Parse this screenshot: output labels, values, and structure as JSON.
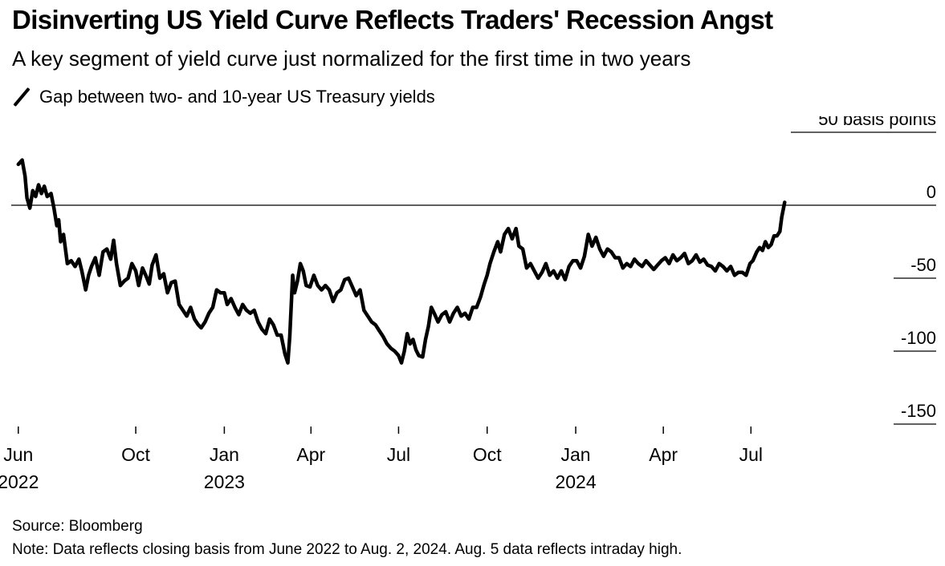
{
  "header": {
    "title": "Disinverting US Yield Curve Reflects Traders' Recession Angst",
    "subtitle": "A key segment of yield curve just normalized for the first time in two years",
    "legend_label": "Gap between two- and 10-year US Treasury yields"
  },
  "footer": {
    "source": "Source: Bloomberg",
    "note": "Note: Data reflects closing basis from June 2022 to Aug. 2, 2024. Aug. 5 data reflects intraday high."
  },
  "chart_data": {
    "type": "line",
    "title": "Disinverting US Yield Curve Reflects Traders' Recession Angst",
    "subtitle": "A key segment of yield curve just normalized for the first time in two years",
    "xlabel": "",
    "ylabel": "",
    "ylim": [
      -150,
      50
    ],
    "y_unit_label": "basis points",
    "y_ticks": [
      {
        "value": 50,
        "label": "50 basis points"
      },
      {
        "value": 0,
        "label": "0"
      },
      {
        "value": -50,
        "label": "-50"
      },
      {
        "value": -100,
        "label": "-100"
      },
      {
        "value": -150,
        "label": "-150"
      }
    ],
    "x_ticks": [
      {
        "date": "2022-06-01",
        "label": "Jun",
        "year": "2022"
      },
      {
        "date": "2022-10-01",
        "label": "Oct",
        "year": ""
      },
      {
        "date": "2023-01-01",
        "label": "Jan",
        "year": "2023"
      },
      {
        "date": "2023-04-01",
        "label": "Apr",
        "year": ""
      },
      {
        "date": "2023-07-01",
        "label": "Jul",
        "year": ""
      },
      {
        "date": "2023-10-01",
        "label": "Oct",
        "year": ""
      },
      {
        "date": "2024-01-01",
        "label": "Jan",
        "year": "2024"
      },
      {
        "date": "2024-04-01",
        "label": "Apr",
        "year": ""
      },
      {
        "date": "2024-07-01",
        "label": "Jul",
        "year": ""
      }
    ],
    "xlim": [
      "2022-05-18",
      "2024-10-18"
    ],
    "zero_line": true,
    "series": [
      {
        "name": "Gap between two- and 10-year US Treasury yields",
        "color": "#000000",
        "points": [
          [
            "2022-06-01",
            28
          ],
          [
            "2022-06-05",
            31
          ],
          [
            "2022-06-08",
            20
          ],
          [
            "2022-06-10",
            5
          ],
          [
            "2022-06-13",
            -2
          ],
          [
            "2022-06-16",
            10
          ],
          [
            "2022-06-19",
            6
          ],
          [
            "2022-06-22",
            14
          ],
          [
            "2022-06-25",
            8
          ],
          [
            "2022-06-28",
            13
          ],
          [
            "2022-07-01",
            6
          ],
          [
            "2022-07-05",
            8
          ],
          [
            "2022-07-08",
            -2
          ],
          [
            "2022-07-11",
            -14
          ],
          [
            "2022-07-13",
            -10
          ],
          [
            "2022-07-15",
            -25
          ],
          [
            "2022-07-18",
            -20
          ],
          [
            "2022-07-22",
            -40
          ],
          [
            "2022-07-26",
            -38
          ],
          [
            "2022-07-30",
            -42
          ],
          [
            "2022-08-03",
            -37
          ],
          [
            "2022-08-06",
            -45
          ],
          [
            "2022-08-10",
            -58
          ],
          [
            "2022-08-13",
            -48
          ],
          [
            "2022-08-16",
            -42
          ],
          [
            "2022-08-20",
            -36
          ],
          [
            "2022-08-24",
            -48
          ],
          [
            "2022-08-28",
            -32
          ],
          [
            "2022-09-01",
            -30
          ],
          [
            "2022-09-05",
            -37
          ],
          [
            "2022-09-08",
            -24
          ],
          [
            "2022-09-11",
            -40
          ],
          [
            "2022-09-15",
            -55
          ],
          [
            "2022-09-19",
            -52
          ],
          [
            "2022-09-23",
            -50
          ],
          [
            "2022-09-27",
            -40
          ],
          [
            "2022-10-01",
            -45
          ],
          [
            "2022-10-04",
            -55
          ],
          [
            "2022-10-08",
            -43
          ],
          [
            "2022-10-12",
            -49
          ],
          [
            "2022-10-15",
            -54
          ],
          [
            "2022-10-18",
            -41
          ],
          [
            "2022-10-22",
            -34
          ],
          [
            "2022-10-26",
            -50
          ],
          [
            "2022-10-30",
            -47
          ],
          [
            "2022-11-03",
            -60
          ],
          [
            "2022-11-07",
            -53
          ],
          [
            "2022-11-11",
            -52
          ],
          [
            "2022-11-15",
            -68
          ],
          [
            "2022-11-19",
            -72
          ],
          [
            "2022-11-23",
            -76
          ],
          [
            "2022-11-27",
            -70
          ],
          [
            "2022-12-01",
            -78
          ],
          [
            "2022-12-05",
            -82
          ],
          [
            "2022-12-08",
            -84
          ],
          [
            "2022-12-12",
            -80
          ],
          [
            "2022-12-16",
            -74
          ],
          [
            "2022-12-20",
            -70
          ],
          [
            "2022-12-24",
            -58
          ],
          [
            "2022-12-28",
            -60
          ],
          [
            "2023-01-01",
            -60
          ],
          [
            "2023-01-04",
            -68
          ],
          [
            "2023-01-08",
            -64
          ],
          [
            "2023-01-12",
            -70
          ],
          [
            "2023-01-16",
            -75
          ],
          [
            "2023-01-20",
            -68
          ],
          [
            "2023-01-24",
            -72
          ],
          [
            "2023-01-28",
            -74
          ],
          [
            "2023-02-01",
            -72
          ],
          [
            "2023-02-05",
            -80
          ],
          [
            "2023-02-09",
            -85
          ],
          [
            "2023-02-13",
            -88
          ],
          [
            "2023-02-17",
            -78
          ],
          [
            "2023-02-21",
            -82
          ],
          [
            "2023-02-25",
            -89
          ],
          [
            "2023-03-01",
            -89
          ],
          [
            "2023-03-05",
            -102
          ],
          [
            "2023-03-08",
            -108
          ],
          [
            "2023-03-10",
            -90
          ],
          [
            "2023-03-13",
            -48
          ],
          [
            "2023-03-15",
            -60
          ],
          [
            "2023-03-18",
            -52
          ],
          [
            "2023-03-21",
            -40
          ],
          [
            "2023-03-24",
            -45
          ],
          [
            "2023-03-27",
            -55
          ],
          [
            "2023-03-31",
            -56
          ],
          [
            "2023-04-04",
            -48
          ],
          [
            "2023-04-08",
            -55
          ],
          [
            "2023-04-12",
            -58
          ],
          [
            "2023-04-16",
            -55
          ],
          [
            "2023-04-20",
            -58
          ],
          [
            "2023-04-24",
            -66
          ],
          [
            "2023-04-28",
            -60
          ],
          [
            "2023-05-02",
            -58
          ],
          [
            "2023-05-06",
            -51
          ],
          [
            "2023-05-10",
            -50
          ],
          [
            "2023-05-14",
            -56
          ],
          [
            "2023-05-18",
            -62
          ],
          [
            "2023-05-22",
            -58
          ],
          [
            "2023-05-26",
            -72
          ],
          [
            "2023-05-30",
            -76
          ],
          [
            "2023-06-03",
            -80
          ],
          [
            "2023-06-07",
            -82
          ],
          [
            "2023-06-11",
            -86
          ],
          [
            "2023-06-15",
            -90
          ],
          [
            "2023-06-19",
            -95
          ],
          [
            "2023-06-23",
            -98
          ],
          [
            "2023-06-27",
            -100
          ],
          [
            "2023-07-01",
            -103
          ],
          [
            "2023-07-04",
            -108
          ],
          [
            "2023-07-07",
            -100
          ],
          [
            "2023-07-10",
            -88
          ],
          [
            "2023-07-13",
            -95
          ],
          [
            "2023-07-16",
            -92
          ],
          [
            "2023-07-19",
            -99
          ],
          [
            "2023-07-22",
            -103
          ],
          [
            "2023-07-26",
            -104
          ],
          [
            "2023-07-29",
            -92
          ],
          [
            "2023-08-01",
            -83
          ],
          [
            "2023-08-04",
            -70
          ],
          [
            "2023-08-07",
            -74
          ],
          [
            "2023-08-11",
            -80
          ],
          [
            "2023-08-15",
            -75
          ],
          [
            "2023-08-19",
            -73
          ],
          [
            "2023-08-23",
            -80
          ],
          [
            "2023-08-27",
            -74
          ],
          [
            "2023-08-31",
            -70
          ],
          [
            "2023-09-04",
            -76
          ],
          [
            "2023-09-08",
            -74
          ],
          [
            "2023-09-12",
            -78
          ],
          [
            "2023-09-16",
            -70
          ],
          [
            "2023-09-20",
            -70
          ],
          [
            "2023-09-24",
            -63
          ],
          [
            "2023-09-28",
            -54
          ],
          [
            "2023-10-01",
            -48
          ],
          [
            "2023-10-04",
            -40
          ],
          [
            "2023-10-08",
            -32
          ],
          [
            "2023-10-12",
            -25
          ],
          [
            "2023-10-15",
            -32
          ],
          [
            "2023-10-19",
            -20
          ],
          [
            "2023-10-23",
            -16
          ],
          [
            "2023-10-27",
            -23
          ],
          [
            "2023-10-31",
            -16
          ],
          [
            "2023-11-03",
            -28
          ],
          [
            "2023-11-07",
            -30
          ],
          [
            "2023-11-11",
            -43
          ],
          [
            "2023-11-15",
            -40
          ],
          [
            "2023-11-19",
            -45
          ],
          [
            "2023-11-23",
            -50
          ],
          [
            "2023-11-27",
            -46
          ],
          [
            "2023-12-01",
            -40
          ],
          [
            "2023-12-05",
            -48
          ],
          [
            "2023-12-09",
            -45
          ],
          [
            "2023-12-13",
            -50
          ],
          [
            "2023-12-17",
            -45
          ],
          [
            "2023-12-21",
            -51
          ],
          [
            "2023-12-25",
            -42
          ],
          [
            "2023-12-29",
            -38
          ],
          [
            "2024-01-02",
            -38
          ],
          [
            "2024-01-06",
            -43
          ],
          [
            "2024-01-10",
            -35
          ],
          [
            "2024-01-14",
            -20
          ],
          [
            "2024-01-18",
            -28
          ],
          [
            "2024-01-22",
            -22
          ],
          [
            "2024-01-26",
            -30
          ],
          [
            "2024-01-30",
            -35
          ],
          [
            "2024-02-03",
            -30
          ],
          [
            "2024-02-07",
            -32
          ],
          [
            "2024-02-11",
            -36
          ],
          [
            "2024-02-15",
            -36
          ],
          [
            "2024-02-19",
            -43
          ],
          [
            "2024-02-23",
            -40
          ],
          [
            "2024-02-27",
            -42
          ],
          [
            "2024-03-02",
            -37
          ],
          [
            "2024-03-06",
            -40
          ],
          [
            "2024-03-10",
            -42
          ],
          [
            "2024-03-14",
            -38
          ],
          [
            "2024-03-18",
            -41
          ],
          [
            "2024-03-22",
            -44
          ],
          [
            "2024-03-26",
            -41
          ],
          [
            "2024-03-30",
            -38
          ],
          [
            "2024-04-03",
            -36
          ],
          [
            "2024-04-07",
            -40
          ],
          [
            "2024-04-11",
            -34
          ],
          [
            "2024-04-15",
            -38
          ],
          [
            "2024-04-19",
            -36
          ],
          [
            "2024-04-23",
            -33
          ],
          [
            "2024-04-27",
            -40
          ],
          [
            "2024-05-01",
            -38
          ],
          [
            "2024-05-05",
            -34
          ],
          [
            "2024-05-09",
            -39
          ],
          [
            "2024-05-13",
            -37
          ],
          [
            "2024-05-17",
            -41
          ],
          [
            "2024-05-21",
            -42
          ],
          [
            "2024-05-25",
            -45
          ],
          [
            "2024-05-29",
            -40
          ],
          [
            "2024-06-02",
            -42
          ],
          [
            "2024-06-06",
            -45
          ],
          [
            "2024-06-10",
            -42
          ],
          [
            "2024-06-14",
            -48
          ],
          [
            "2024-06-18",
            -46
          ],
          [
            "2024-06-22",
            -46
          ],
          [
            "2024-06-26",
            -48
          ],
          [
            "2024-06-30",
            -40
          ],
          [
            "2024-07-03",
            -38
          ],
          [
            "2024-07-07",
            -32
          ],
          [
            "2024-07-10",
            -29
          ],
          [
            "2024-07-13",
            -31
          ],
          [
            "2024-07-16",
            -25
          ],
          [
            "2024-07-19",
            -29
          ],
          [
            "2024-07-22",
            -27
          ],
          [
            "2024-07-25",
            -21
          ],
          [
            "2024-07-28",
            -21
          ],
          [
            "2024-07-31",
            -18
          ],
          [
            "2024-08-02",
            -8
          ],
          [
            "2024-08-05",
            2
          ]
        ]
      }
    ]
  }
}
